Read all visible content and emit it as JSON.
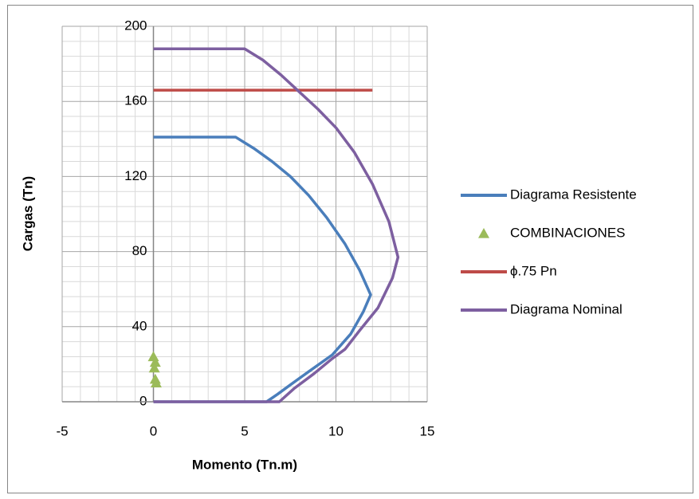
{
  "chart_data": {
    "type": "scatter",
    "xlabel": "Momento (Tn.m)",
    "ylabel": "Cargas (Tn)",
    "xlim": [
      -5,
      15
    ],
    "xticks": [
      -5,
      0,
      5,
      10,
      15
    ],
    "ylim": [
      0,
      200
    ],
    "yticks": [
      0,
      40,
      80,
      120,
      160,
      200
    ],
    "grid": true,
    "minor_grid": true,
    "legend": "right",
    "series": [
      {
        "name": "Diagrama Resistente",
        "color": "#4a7ebb",
        "style": "line",
        "x": [
          0,
          4.5,
          5.5,
          6.5,
          7.5,
          8.5,
          9.5,
          10.5,
          11.3,
          11.9,
          11.5,
          10.8,
          9.8,
          8.5,
          7.5,
          6.8,
          6.2,
          0
        ],
        "y": [
          141,
          141,
          135,
          128,
          120,
          110,
          98,
          84,
          70,
          57,
          48,
          36,
          25,
          16,
          9,
          4,
          0,
          0
        ]
      },
      {
        "name": "COMBINACIONES",
        "color": "#9bbb59",
        "style": "marker",
        "x": [
          0,
          0.1,
          0.05,
          0.1,
          0.15
        ],
        "y": [
          24,
          21,
          18,
          12,
          10
        ]
      },
      {
        "name": "ϕ.75 Pn",
        "color": "#be4b48",
        "style": "line",
        "x": [
          0,
          12
        ],
        "y": [
          166,
          166
        ]
      },
      {
        "name": "Diagrama Nominal",
        "color": "#7d5fa0",
        "style": "line",
        "x": [
          0,
          5,
          6,
          7,
          8,
          9,
          10,
          11,
          12,
          12.9,
          13.4,
          13.1,
          12.3,
          11.3,
          10.5,
          9.8,
          8.8,
          7.7,
          6.9,
          0
        ],
        "y": [
          188,
          188,
          182,
          174,
          165,
          156,
          146,
          133,
          116,
          96,
          77,
          66,
          50,
          38,
          28,
          23,
          15,
          7,
          0,
          0
        ]
      }
    ]
  }
}
